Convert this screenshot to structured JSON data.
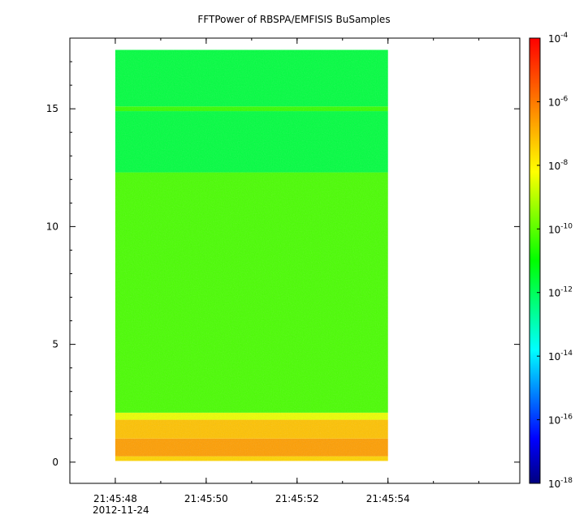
{
  "chart_data": {
    "type": "heatmap",
    "title": "FFTPower of RBSPA/EMFISIS  BuSamples",
    "xlabel": "",
    "ylabel": "",
    "x_range": [
      "21:45:47.0",
      "21:45:56.9"
    ],
    "data_x_range": [
      "21:45:48.0",
      "21:45:54.0"
    ],
    "y_range": [
      -0.9,
      18.0
    ],
    "data_y_range": [
      0.05,
      17.5
    ],
    "x_ticks": [
      {
        "value": "21:45:48",
        "label": "21:45:48"
      },
      {
        "value": "21:45:50",
        "label": "21:45:50"
      },
      {
        "value": "21:45:52",
        "label": "21:45:52"
      },
      {
        "value": "21:45:54",
        "label": "21:45:54"
      }
    ],
    "x_date_label": "2012-11-24",
    "y_ticks": [
      0,
      5,
      10,
      15
    ],
    "colorbar": {
      "scale": "log",
      "range": [
        1e-18,
        0.0001
      ],
      "ticks": [
        {
          "base": "10",
          "exp": "-4"
        },
        {
          "base": "10",
          "exp": "-6"
        },
        {
          "base": "10",
          "exp": "-8"
        },
        {
          "base": "10",
          "exp": "-10"
        },
        {
          "base": "10",
          "exp": "-12"
        },
        {
          "base": "10",
          "exp": "-14"
        },
        {
          "base": "10",
          "exp": "-16"
        },
        {
          "base": "10",
          "exp": "-18"
        }
      ],
      "colormap": [
        "#00007f",
        "#0000ff",
        "#007fff",
        "#00ffff",
        "#00ff7f",
        "#00ff00",
        "#7fff00",
        "#ffff00",
        "#ffaa00",
        "#ff5500",
        "#ff0000"
      ]
    },
    "bands": [
      {
        "y_from": 0.05,
        "y_to": 0.25,
        "log_power": -7.5
      },
      {
        "y_from": 0.25,
        "y_to": 1.0,
        "log_power": -6.6
      },
      {
        "y_from": 1.0,
        "y_to": 1.8,
        "log_power": -7.2
      },
      {
        "y_from": 1.8,
        "y_to": 2.1,
        "log_power": -8.4
      },
      {
        "y_from": 2.1,
        "y_to": 12.3,
        "log_power": -10.2
      },
      {
        "y_from": 12.3,
        "y_to": 14.9,
        "log_power": -11.7
      },
      {
        "y_from": 14.9,
        "y_to": 15.1,
        "log_power": -10.4
      },
      {
        "y_from": 15.1,
        "y_to": 17.5,
        "log_power": -11.7
      }
    ]
  }
}
